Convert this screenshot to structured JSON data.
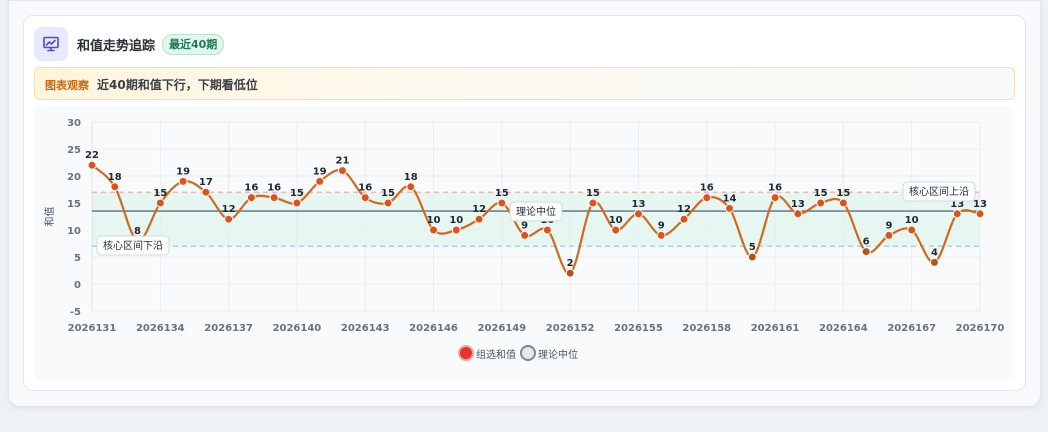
{
  "header": {
    "title": "和值走势追踪",
    "badge": "最近40期",
    "icon": "chart-trend-icon"
  },
  "observation": {
    "label": "图表观察",
    "text": "近40期和值下行，下期看低位"
  },
  "chart_data": {
    "type": "line",
    "ylabel": "和值",
    "ylim": [
      -5,
      30
    ],
    "yticks": [
      -5,
      0,
      5,
      10,
      15,
      20,
      25,
      30
    ],
    "x": [
      "2026131",
      "2026132",
      "2026133",
      "2026134",
      "2026135",
      "2026136",
      "2026137",
      "2026138",
      "2026139",
      "2026140",
      "2026141",
      "2026142",
      "2026143",
      "2026144",
      "2026145",
      "2026146",
      "2026147",
      "2026148",
      "2026149",
      "2026150",
      "2026151",
      "2026152",
      "2026153",
      "2026154",
      "2026155",
      "2026156",
      "2026157",
      "2026158",
      "2026159",
      "2026160",
      "2026161",
      "2026162",
      "2026163",
      "2026164",
      "2026165",
      "2026166",
      "2026167",
      "2026168",
      "2026169",
      "2026170"
    ],
    "xtick_labels": [
      "2026131",
      "2026134",
      "2026137",
      "2026140",
      "2026143",
      "2026146",
      "2026149",
      "2026152",
      "2026155",
      "2026158",
      "2026161",
      "2026164",
      "2026167",
      "2026170"
    ],
    "series": [
      {
        "name": "组选和值",
        "color": "#d2691e",
        "values": [
          22,
          18,
          8,
          15,
          19,
          17,
          12,
          16,
          16,
          15,
          19,
          21,
          16,
          15,
          18,
          10,
          10,
          12,
          15,
          9,
          10,
          2,
          15,
          10,
          13,
          9,
          12,
          16,
          14,
          5,
          16,
          13,
          15,
          15,
          6,
          9,
          10,
          4,
          13,
          13
        ]
      }
    ],
    "reference_lines": [
      {
        "name": "理论中位",
        "value": 13.5,
        "color": "#5b6b82",
        "label": "理论中位"
      },
      {
        "name": "核心区间上沿",
        "value": 17,
        "color": "#f2a3a3",
        "label": "核心区间上沿"
      },
      {
        "name": "核心区间下沿",
        "value": 7,
        "color": "#8fc3ee",
        "label": "核心区间下沿"
      }
    ],
    "band": {
      "from": 7,
      "to": 17,
      "color": "#e3f5ef"
    },
    "legend": [
      {
        "name": "组选和值",
        "color": "#e3342f"
      },
      {
        "name": "理论中位",
        "color": "#e5e7eb"
      }
    ],
    "legend_position": "bottom"
  }
}
